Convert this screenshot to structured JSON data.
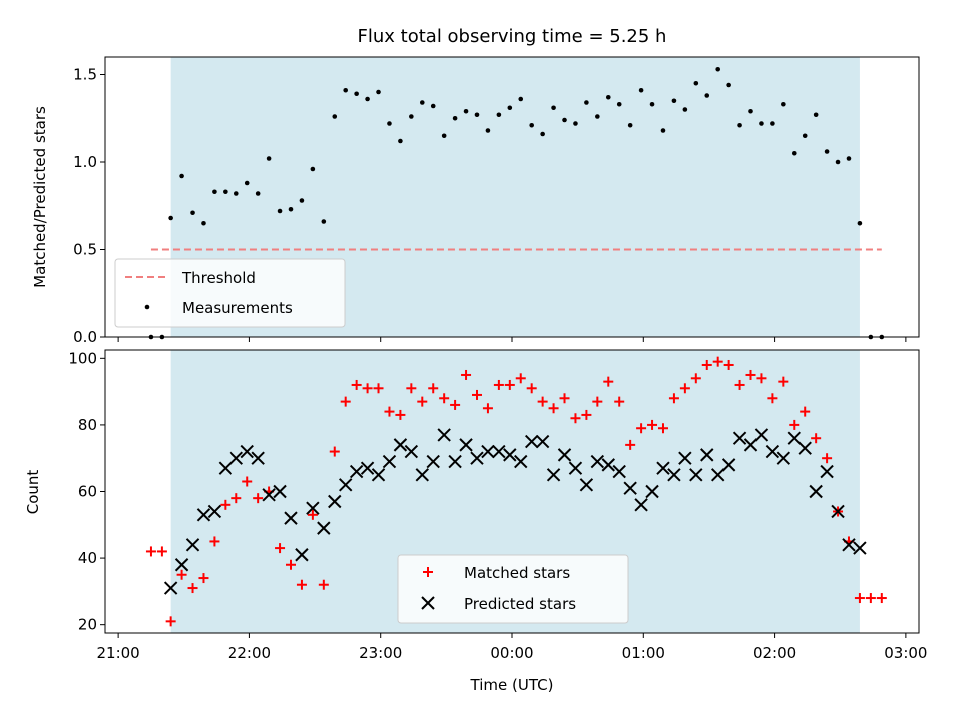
{
  "chart_data": [
    {
      "type": "scatter",
      "title": "Flux total observing time = 5.25 h",
      "xlabel": "",
      "ylabel": "Matched/Predicted stars",
      "ylim": [
        0,
        1.6
      ],
      "yticks": [
        "0.0",
        "0.5",
        "1.0",
        "1.5"
      ],
      "grid": false,
      "legend_position": "lower-left",
      "observing_window": {
        "start": "21:24",
        "end": "02:39",
        "color": "#d4e9f0"
      },
      "threshold": {
        "name": "Threshold",
        "value": 0.5,
        "x_start": "21:15",
        "x_end": "02:49",
        "color": "#f07f7f"
      },
      "series": [
        {
          "name": "Measurements",
          "marker": "dot",
          "color": "#000000",
          "x": [
            "21:15",
            "21:20",
            "21:24",
            "21:29",
            "21:34",
            "21:39",
            "21:44",
            "21:49",
            "21:54",
            "21:59",
            "22:04",
            "22:09",
            "22:14",
            "22:19",
            "22:24",
            "22:29",
            "22:34",
            "22:39",
            "22:44",
            "22:49",
            "22:54",
            "22:59",
            "23:04",
            "23:09",
            "23:14",
            "23:19",
            "23:24",
            "23:29",
            "23:34",
            "23:39",
            "23:44",
            "23:49",
            "23:54",
            "23:59",
            "00:04",
            "00:09",
            "00:14",
            "00:19",
            "00:24",
            "00:29",
            "00:34",
            "00:39",
            "00:44",
            "00:49",
            "00:54",
            "00:59",
            "01:04",
            "01:09",
            "01:14",
            "01:19",
            "01:24",
            "01:29",
            "01:34",
            "01:39",
            "01:44",
            "01:49",
            "01:54",
            "01:59",
            "02:04",
            "02:09",
            "02:14",
            "02:19",
            "02:24",
            "02:29",
            "02:34",
            "02:39",
            "02:44",
            "02:49"
          ],
          "y": [
            0.0,
            0.0,
            0.68,
            0.92,
            0.71,
            0.65,
            0.83,
            0.83,
            0.82,
            0.88,
            0.82,
            1.02,
            0.72,
            0.73,
            0.78,
            0.96,
            0.66,
            1.26,
            1.41,
            1.39,
            1.36,
            1.4,
            1.22,
            1.12,
            1.26,
            1.34,
            1.32,
            1.15,
            1.25,
            1.29,
            1.27,
            1.18,
            1.27,
            1.31,
            1.36,
            1.21,
            1.16,
            1.31,
            1.24,
            1.22,
            1.34,
            1.26,
            1.37,
            1.33,
            1.21,
            1.41,
            1.33,
            1.18,
            1.35,
            1.3,
            1.45,
            1.38,
            1.53,
            1.44,
            1.21,
            1.29,
            1.22,
            1.22,
            1.33,
            1.05,
            1.15,
            1.27,
            1.06,
            1.0,
            1.02,
            0.65,
            0.0,
            0.0
          ]
        }
      ]
    },
    {
      "type": "scatter",
      "title": "",
      "xlabel": "Time (UTC)",
      "ylabel": "Count",
      "xlim": [
        "20:54",
        "03:06"
      ],
      "xticks": [
        "21:00",
        "22:00",
        "23:00",
        "00:00",
        "01:00",
        "02:00",
        "03:00"
      ],
      "ylim": [
        17.5,
        102.5
      ],
      "yticks": [
        "20",
        "40",
        "60",
        "80",
        "100"
      ],
      "grid": false,
      "legend_position": "bottom-center",
      "observing_window": {
        "start": "21:24",
        "end": "02:39",
        "color": "#d4e9f0"
      },
      "series": [
        {
          "name": "Matched stars",
          "marker": "plus",
          "color": "#ff0000",
          "x": [
            "21:15",
            "21:20",
            "21:24",
            "21:29",
            "21:34",
            "21:39",
            "21:44",
            "21:49",
            "21:54",
            "21:59",
            "22:04",
            "22:09",
            "22:14",
            "22:19",
            "22:24",
            "22:29",
            "22:34",
            "22:39",
            "22:44",
            "22:49",
            "22:54",
            "22:59",
            "23:04",
            "23:09",
            "23:14",
            "23:19",
            "23:24",
            "23:29",
            "23:34",
            "23:39",
            "23:44",
            "23:49",
            "23:54",
            "23:59",
            "00:04",
            "00:09",
            "00:14",
            "00:19",
            "00:24",
            "00:29",
            "00:34",
            "00:39",
            "00:44",
            "00:49",
            "00:54",
            "00:59",
            "01:04",
            "01:09",
            "01:14",
            "01:19",
            "01:24",
            "01:29",
            "01:34",
            "01:39",
            "01:44",
            "01:49",
            "01:54",
            "01:59",
            "02:04",
            "02:09",
            "02:14",
            "02:19",
            "02:24",
            "02:29",
            "02:34",
            "02:39",
            "02:44",
            "02:49"
          ],
          "y": [
            42,
            42,
            21,
            35,
            31,
            34,
            45,
            56,
            58,
            63,
            58,
            60,
            43,
            38,
            32,
            53,
            32,
            72,
            87,
            92,
            91,
            91,
            84,
            83,
            91,
            87,
            91,
            88,
            86,
            95,
            89,
            85,
            92,
            92,
            94,
            91,
            87,
            85,
            88,
            82,
            83,
            87,
            93,
            87,
            74,
            79,
            80,
            79,
            88,
            91,
            94,
            98,
            99,
            98,
            92,
            95,
            94,
            88,
            93,
            80,
            84,
            76,
            70,
            54,
            45,
            28,
            28,
            28
          ]
        },
        {
          "name": "Predicted stars",
          "marker": "x",
          "color": "#000000",
          "x": [
            "21:24",
            "21:29",
            "21:34",
            "21:39",
            "21:44",
            "21:49",
            "21:54",
            "21:59",
            "22:04",
            "22:09",
            "22:14",
            "22:19",
            "22:24",
            "22:29",
            "22:34",
            "22:39",
            "22:44",
            "22:49",
            "22:54",
            "22:59",
            "23:04",
            "23:09",
            "23:14",
            "23:19",
            "23:24",
            "23:29",
            "23:34",
            "23:39",
            "23:44",
            "23:49",
            "23:54",
            "23:59",
            "00:04",
            "00:09",
            "00:14",
            "00:19",
            "00:24",
            "00:29",
            "00:34",
            "00:39",
            "00:44",
            "00:49",
            "00:54",
            "00:59",
            "01:04",
            "01:09",
            "01:14",
            "01:19",
            "01:24",
            "01:29",
            "01:34",
            "01:39",
            "01:44",
            "01:49",
            "01:54",
            "01:59",
            "02:04",
            "02:09",
            "02:14",
            "02:19",
            "02:24",
            "02:29",
            "02:34",
            "02:39"
          ],
          "y": [
            31,
            38,
            44,
            53,
            54,
            67,
            70,
            72,
            70,
            59,
            60,
            52,
            41,
            55,
            49,
            57,
            62,
            66,
            67,
            65,
            69,
            74,
            72,
            65,
            69,
            77,
            69,
            74,
            70,
            72,
            72,
            71,
            69,
            75,
            75,
            65,
            71,
            67,
            62,
            69,
            68,
            66,
            61,
            56,
            60,
            67,
            65,
            70,
            65,
            71,
            65,
            68,
            76,
            74,
            77,
            72,
            70,
            76,
            73,
            60,
            66,
            54,
            44,
            43
          ]
        }
      ]
    }
  ]
}
